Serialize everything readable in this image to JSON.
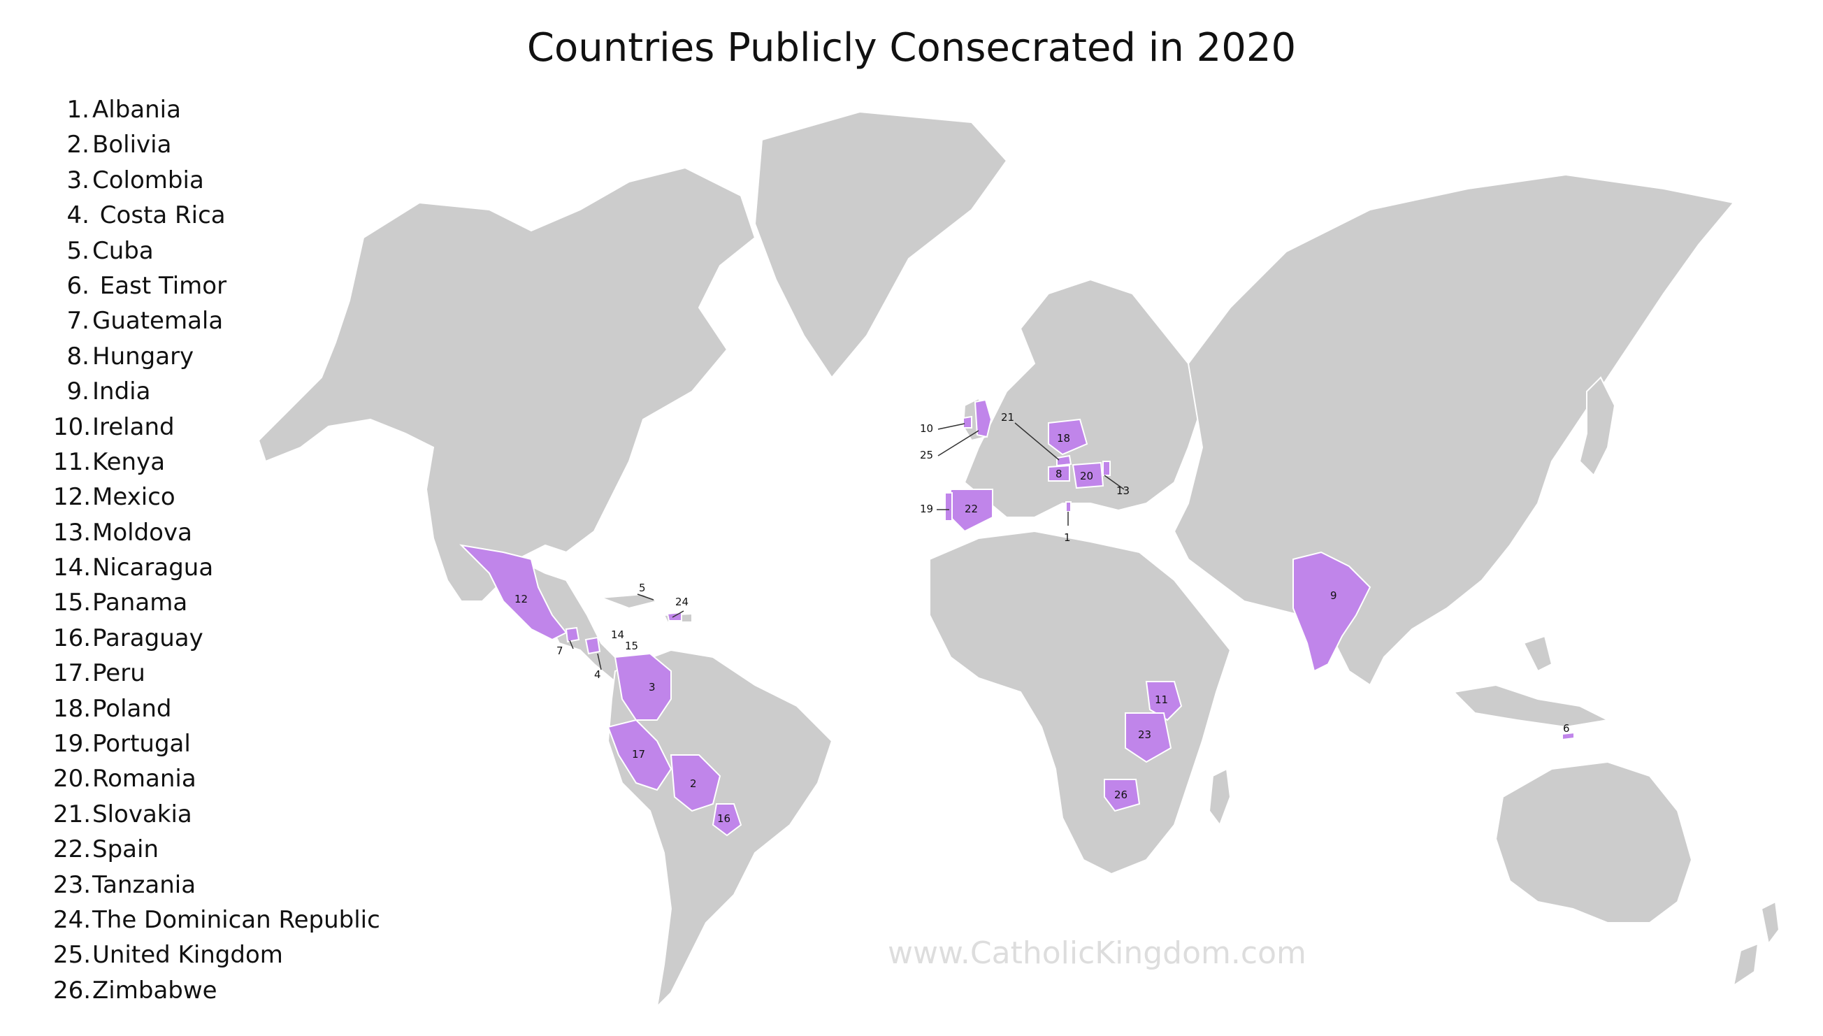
{
  "title": "Countries Publicly Consecrated in 2020",
  "watermark": "www.CatholicKingdom.com",
  "colors": {
    "land": "#cccccc",
    "highlight": "#c085ea",
    "background": "#ffffff"
  },
  "legend": [
    {
      "num": "1.",
      "name": "Albania"
    },
    {
      "num": "2.",
      "name": "Bolivia"
    },
    {
      "num": "3.",
      "name": "Colombia"
    },
    {
      "num": "4.",
      "name": " Costa Rica"
    },
    {
      "num": "5.",
      "name": "Cuba"
    },
    {
      "num": "6.",
      "name": " East Timor"
    },
    {
      "num": "7.",
      "name": "Guatemala"
    },
    {
      "num": "8.",
      "name": "Hungary"
    },
    {
      "num": "9.",
      "name": "India"
    },
    {
      "num": "10.",
      "name": "Ireland"
    },
    {
      "num": "11.",
      "name": "Kenya"
    },
    {
      "num": "12.",
      "name": "Mexico"
    },
    {
      "num": "13.",
      "name": "Moldova"
    },
    {
      "num": "14.",
      "name": "Nicaragua"
    },
    {
      "num": "15.",
      "name": "Panama"
    },
    {
      "num": "16.",
      "name": "Paraguay"
    },
    {
      "num": "17.",
      "name": "Peru"
    },
    {
      "num": "18.",
      "name": "Poland"
    },
    {
      "num": "19.",
      "name": "Portugal"
    },
    {
      "num": "20.",
      "name": "Romania"
    },
    {
      "num": "21.",
      "name": "Slovakia"
    },
    {
      "num": "22.",
      "name": "Spain"
    },
    {
      "num": "23.",
      "name": "Tanzania"
    },
    {
      "num": "24.",
      "name": "The Dominican Republic"
    },
    {
      "num": "25.",
      "name": "United Kingdom"
    },
    {
      "num": "26.",
      "name": "Zimbabwe"
    }
  ],
  "map_labels": [
    "1",
    "2",
    "3",
    "4",
    "5",
    "6",
    "7",
    "8",
    "9",
    "10",
    "11",
    "12",
    "13",
    "14",
    "15",
    "16",
    "17",
    "18",
    "19",
    "20",
    "21",
    "22",
    "23",
    "24",
    "25",
    "26"
  ]
}
